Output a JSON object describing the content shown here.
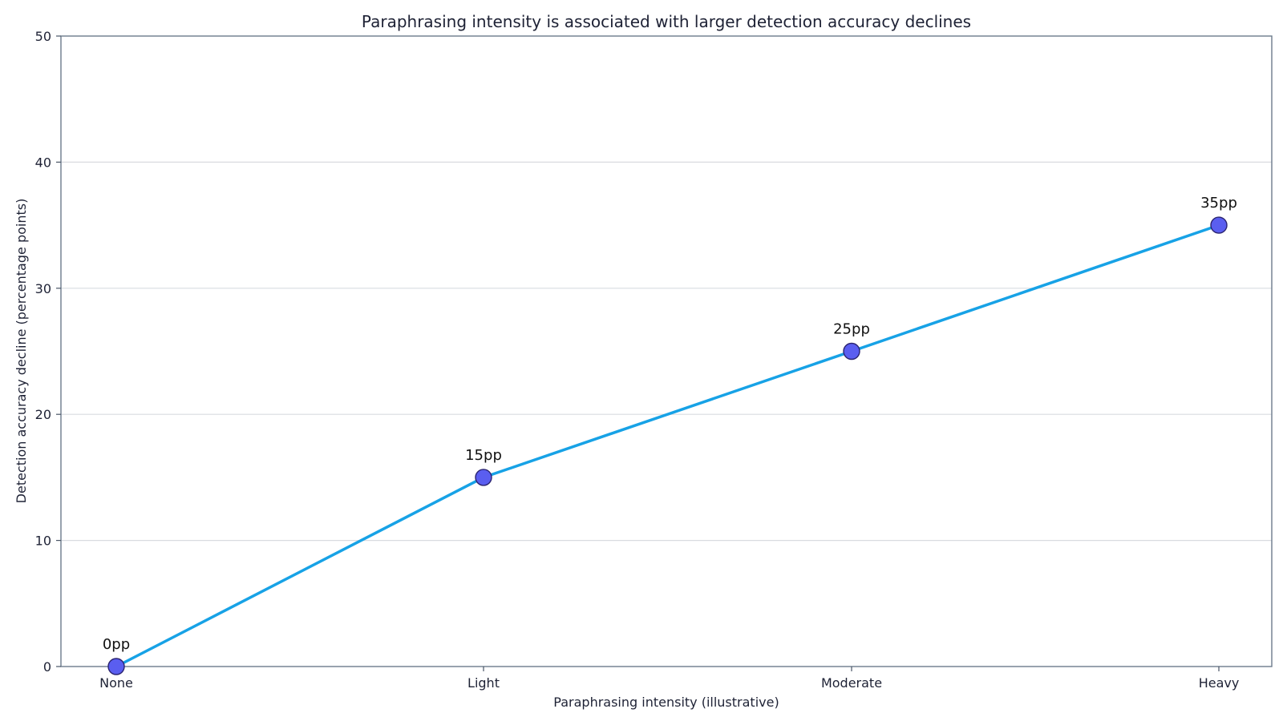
{
  "chart_data": {
    "type": "line",
    "title": "Paraphrasing intensity is associated with larger detection accuracy declines",
    "xlabel": "Paraphrasing intensity (illustrative)",
    "ylabel": "Detection accuracy decline (percentage points)",
    "categories": [
      "None",
      "Light",
      "Moderate",
      "Heavy"
    ],
    "series": [
      {
        "values": [
          0,
          15,
          25,
          35
        ],
        "labels": [
          "0pp",
          "15pp",
          "25pp",
          "35pp"
        ],
        "line_color": "#17a2e6",
        "marker_fill": "#5a5ef0",
        "marker_edge": "#2b2470"
      }
    ],
    "ylim": [
      0,
      50
    ],
    "yticks": [
      0,
      10,
      20,
      30,
      40,
      50
    ],
    "grid": "horizontal",
    "legend": "none"
  }
}
